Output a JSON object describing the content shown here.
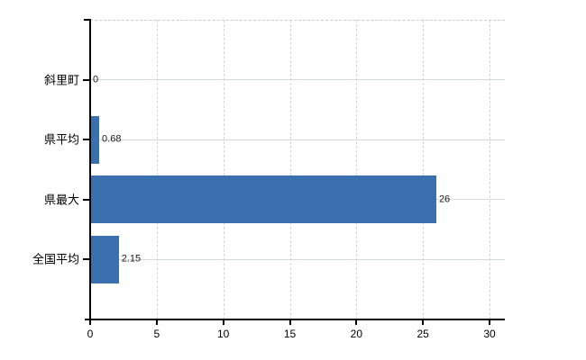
{
  "chart_data": {
    "type": "bar",
    "orientation": "horizontal",
    "title": "",
    "xlabel": "",
    "ylabel": "",
    "categories": [
      "斜里町",
      "県平均",
      "県最大",
      "全国平均"
    ],
    "values": [
      0,
      0.68,
      26,
      2.15
    ],
    "value_labels": [
      "0",
      "0.68",
      "26",
      "2.15"
    ],
    "x_ticks": [
      0,
      5,
      10,
      15,
      20,
      25,
      30
    ],
    "xlim": [
      0,
      31.15
    ],
    "grid": true,
    "legend": false,
    "colors": {
      "bar": "#3a70ae",
      "axis": "#000000",
      "horizontal_gridline": "#d5dbd5",
      "vertical_gridline": "#d9d2da",
      "top_border": "#cfc9cf",
      "text": "#000000",
      "background": "#ffffff"
    }
  }
}
